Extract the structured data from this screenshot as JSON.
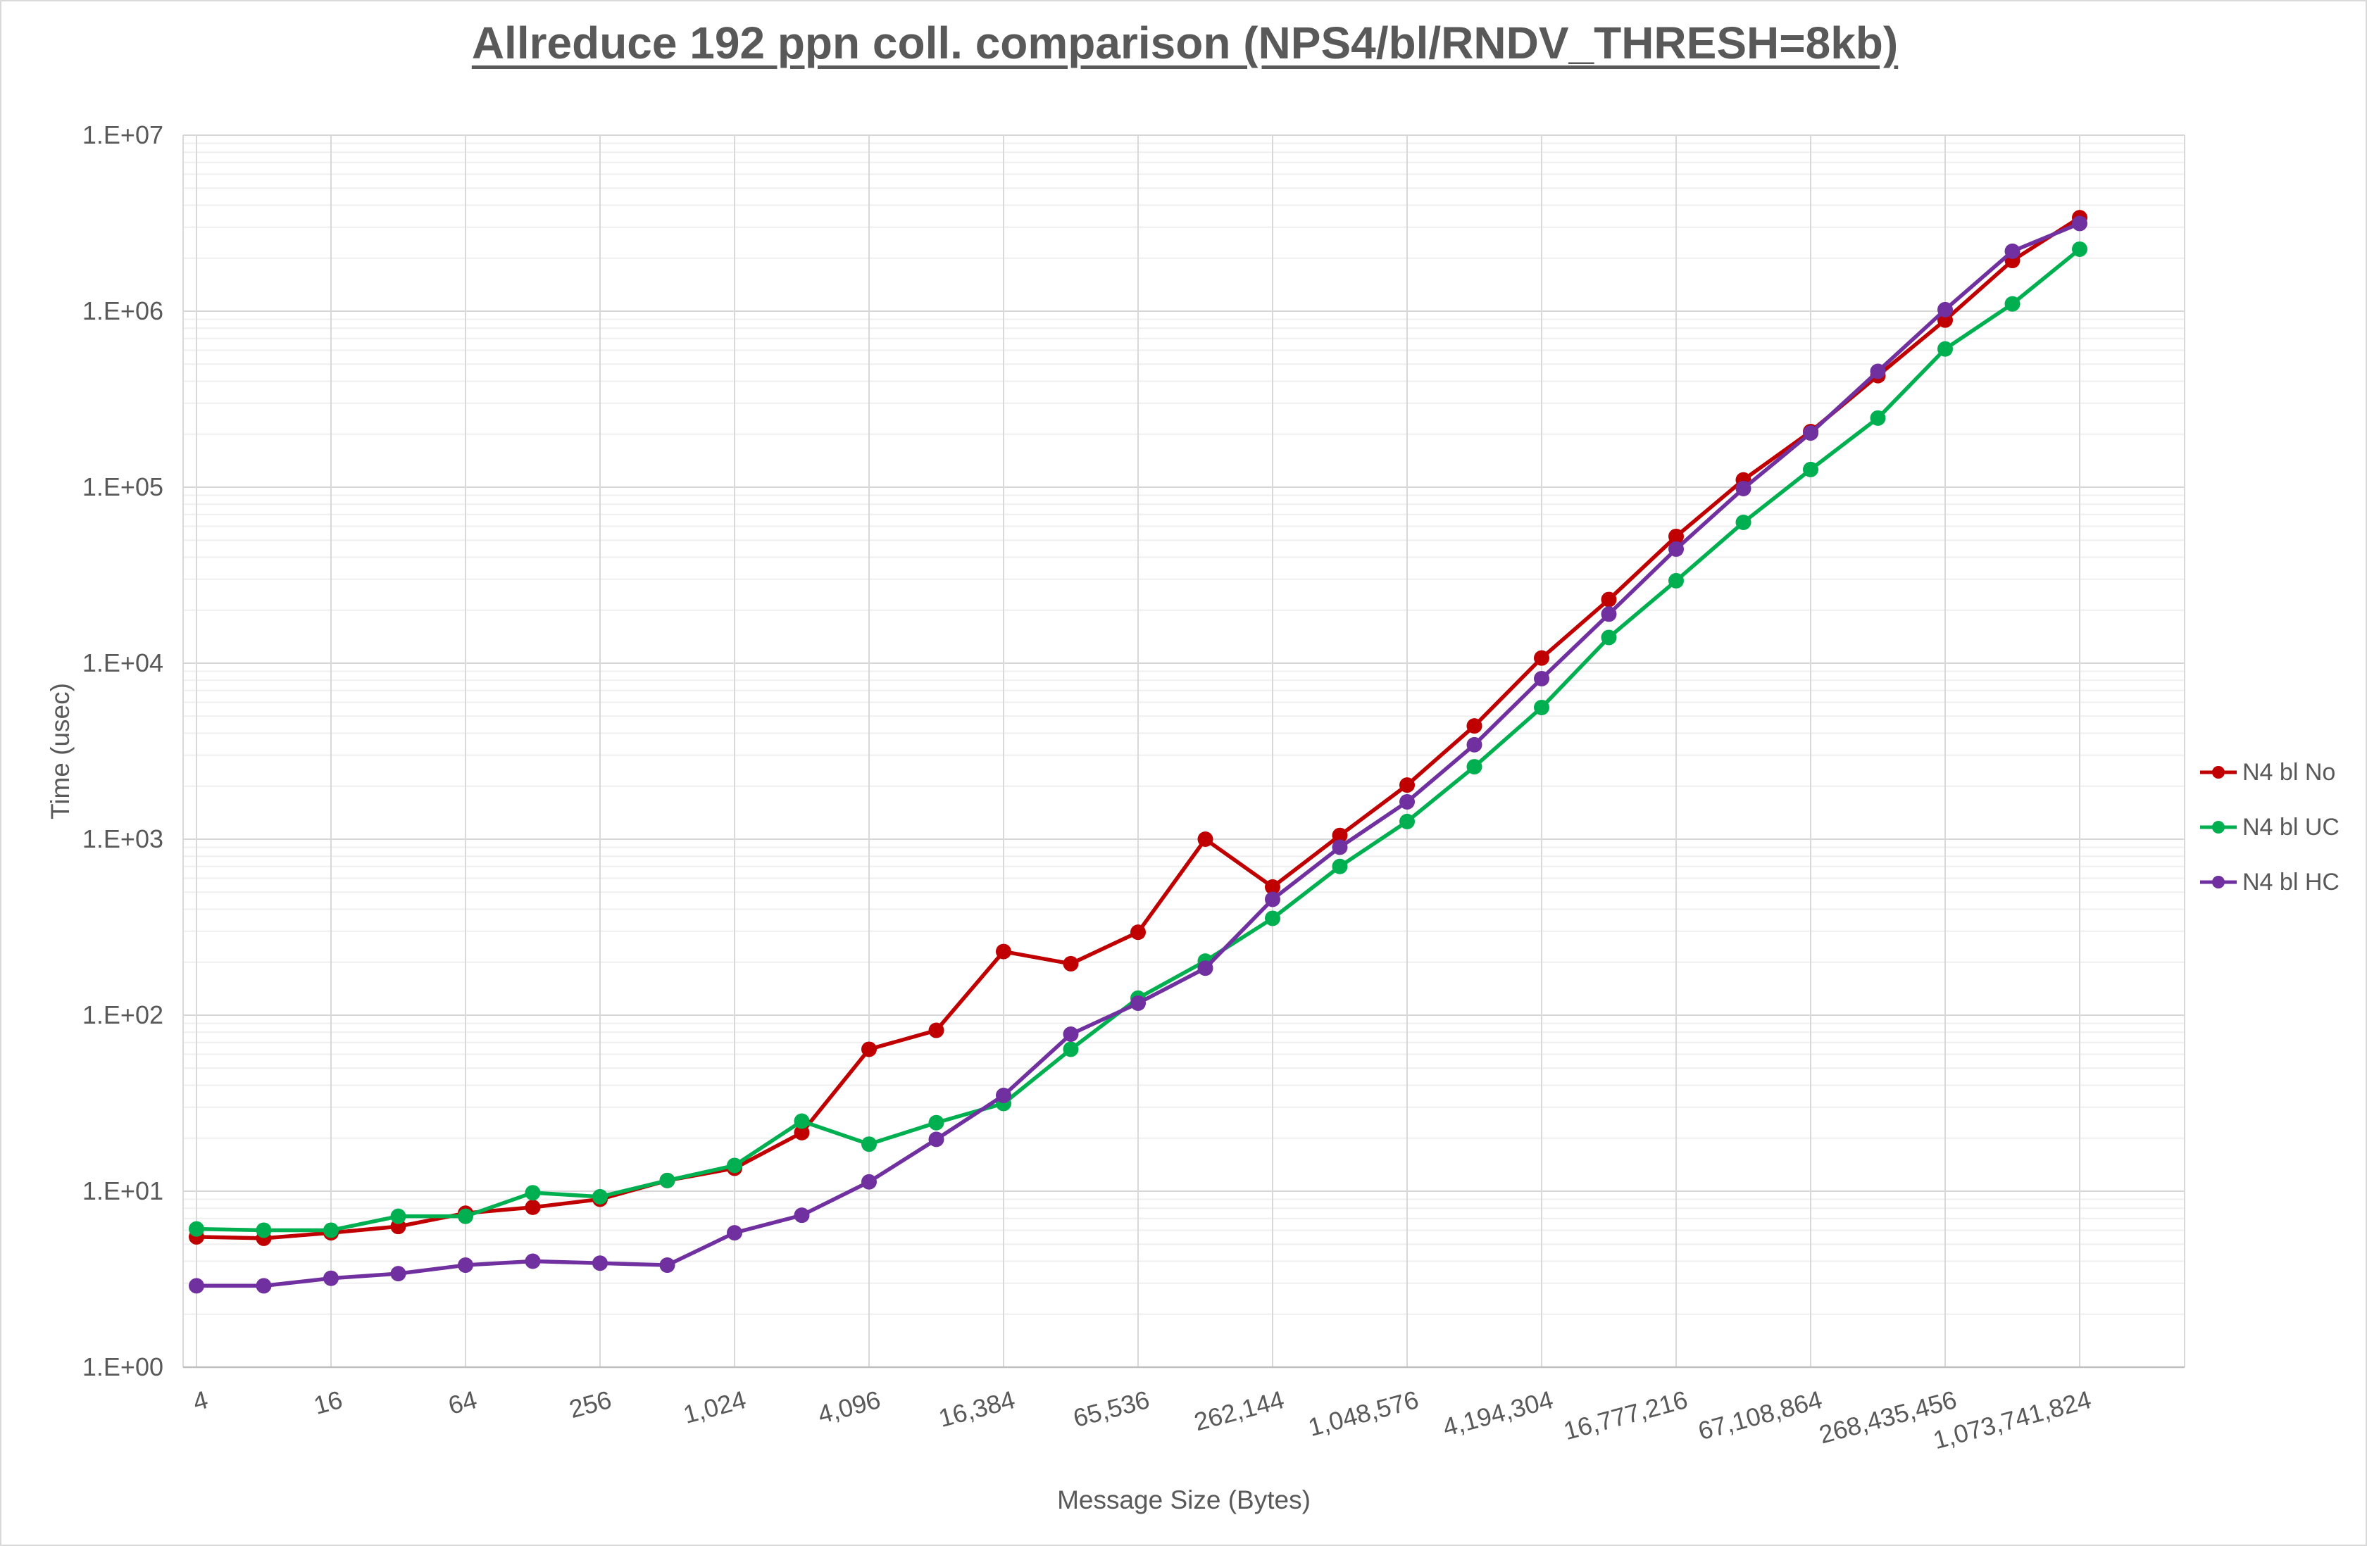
{
  "chart_data": {
    "type": "line",
    "title": "Allreduce 192 ppn coll. comparison (NPS4/bl/RNDV_THRESH=8kb)",
    "xlabel": "Message Size (Bytes)",
    "ylabel": "Time (usec)",
    "x_scale": "log2",
    "y_scale": "log10",
    "ylim": [
      1,
      10000000
    ],
    "grid": {
      "major": true,
      "minor": true
    },
    "legend_position": "right",
    "y_tick_labels": [
      "1.E+00",
      "1.E+01",
      "1.E+02",
      "1.E+03",
      "1.E+04",
      "1.E+05",
      "1.E+06",
      "1.E+07"
    ],
    "x_tick_values": [
      4,
      16,
      64,
      256,
      1024,
      4096,
      16384,
      65536,
      262144,
      1048576,
      4194304,
      16777216,
      67108864,
      268435456,
      1073741824
    ],
    "x_tick_labels": [
      "4",
      "16",
      "64",
      "256",
      "1,024",
      "4,096",
      "16,384",
      "65,536",
      "262,144",
      "1,048,576",
      "4,194,304",
      "16,777,216",
      "67,108,864",
      "268,435,456",
      "1,073,741,824"
    ],
    "categories": [
      4,
      8,
      16,
      32,
      64,
      128,
      256,
      512,
      1024,
      2048,
      4096,
      8192,
      16384,
      32768,
      65536,
      131072,
      262144,
      524288,
      1048576,
      2097152,
      4194304,
      8388608,
      16777216,
      33554432,
      67108864,
      134217728,
      268435456,
      536870912,
      1073741824
    ],
    "series": [
      {
        "name": "N4 bl No",
        "color": "#C00000",
        "values": [
          5.5,
          5.4,
          5.8,
          6.3,
          7.5,
          8.1,
          9.0,
          11.5,
          13.5,
          21.5,
          64,
          82,
          230,
          196,
          296,
          1000,
          535,
          1050,
          2030,
          4400,
          10700,
          23000,
          52500,
          110000,
          207000,
          430000,
          890000,
          1940000,
          3400000
        ]
      },
      {
        "name": "N4 bl UC",
        "color": "#00B050",
        "values": [
          6.1,
          6.0,
          6.0,
          7.2,
          7.2,
          9.8,
          9.3,
          11.5,
          14,
          25,
          18.5,
          24.5,
          31.5,
          64,
          125,
          203,
          355,
          700,
          1260,
          2580,
          5600,
          14000,
          29400,
          63100,
          126000,
          247000,
          610000,
          1100000,
          2250000
        ]
      },
      {
        "name": "N4 bl HC",
        "color": "#7030A0",
        "values": [
          2.9,
          2.9,
          3.2,
          3.4,
          3.8,
          4.0,
          3.9,
          3.8,
          5.8,
          7.3,
          11.3,
          19.7,
          35,
          78,
          117,
          185,
          455,
          900,
          1630,
          3440,
          8170,
          19000,
          44500,
          98200,
          203000,
          455000,
          1020000,
          2190000,
          3150000
        ]
      }
    ]
  }
}
